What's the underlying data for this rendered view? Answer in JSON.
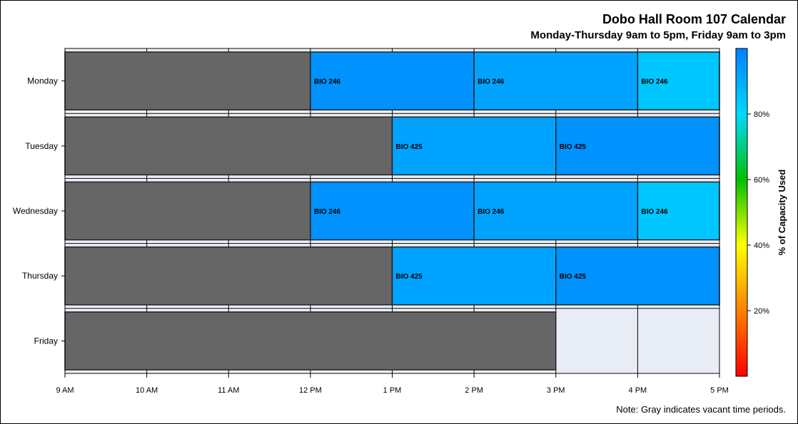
{
  "chart_data": {
    "type": "bar",
    "subtype": "horizontal-segmented-schedule",
    "title": "Dobo Hall Room 107 Calendar",
    "subtitle": "Monday-Thursday 9am to 5pm, Friday 9am to 3pm",
    "note": "Note: Gray indicates vacant time periods.",
    "x_ticks": [
      "9 AM",
      "10 AM",
      "11 AM",
      "12 PM",
      "1 PM",
      "2 PM",
      "3 PM",
      "4 PM",
      "5 PM"
    ],
    "x_range_hours": [
      9,
      17
    ],
    "categories": [
      "Monday",
      "Tuesday",
      "Wednesday",
      "Thursday",
      "Friday"
    ],
    "rows": [
      {
        "day": "Monday",
        "segments": [
          {
            "start": 9,
            "end": 12,
            "vacant": true
          },
          {
            "start": 12,
            "end": 14,
            "label": "BIO 246",
            "capacity": 96
          },
          {
            "start": 14,
            "end": 16,
            "label": "BIO 246",
            "capacity": 92
          },
          {
            "start": 16,
            "end": 17,
            "label": "BIO 246",
            "capacity": 84
          }
        ]
      },
      {
        "day": "Tuesday",
        "segments": [
          {
            "start": 9,
            "end": 13,
            "vacant": true
          },
          {
            "start": 13,
            "end": 15,
            "label": "BIO 425",
            "capacity": 92
          },
          {
            "start": 15,
            "end": 17,
            "label": "BIO 425",
            "capacity": 96
          }
        ]
      },
      {
        "day": "Wednesday",
        "segments": [
          {
            "start": 9,
            "end": 12,
            "vacant": true
          },
          {
            "start": 12,
            "end": 14,
            "label": "BIO 246",
            "capacity": 96
          },
          {
            "start": 14,
            "end": 16,
            "label": "BIO 246",
            "capacity": 92
          },
          {
            "start": 16,
            "end": 17,
            "label": "BIO 246",
            "capacity": 84
          }
        ]
      },
      {
        "day": "Thursday",
        "segments": [
          {
            "start": 9,
            "end": 13,
            "vacant": true
          },
          {
            "start": 13,
            "end": 15,
            "label": "BIO 425",
            "capacity": 92
          },
          {
            "start": 15,
            "end": 17,
            "label": "BIO 425",
            "capacity": 96
          }
        ]
      },
      {
        "day": "Friday",
        "segments": [
          {
            "start": 9,
            "end": 15,
            "vacant": true
          }
        ]
      }
    ],
    "colorbar": {
      "label": "% of Capacity Used",
      "ticks": [
        "20%",
        "40%",
        "60%",
        "80%"
      ],
      "tick_values": [
        20,
        40,
        60,
        80
      ],
      "range": [
        0,
        100
      ],
      "colors": [
        "#ff0000",
        "#ff8000",
        "#ffff00",
        "#00c000",
        "#00d8ff",
        "#0080ff"
      ]
    },
    "colors": {
      "vacant": "#666666",
      "empty_slot": "#e8ecf4",
      "row_band": "#e8ecf4"
    },
    "grid": true
  }
}
